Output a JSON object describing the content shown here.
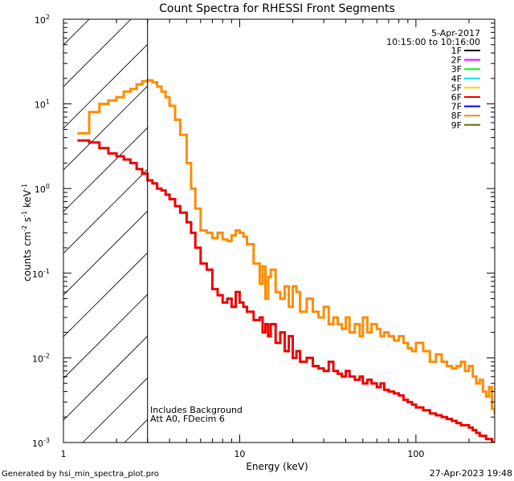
{
  "chart_data": {
    "type": "line",
    "title": "Count Spectra for RHESSI Front Segments",
    "xlabel": "Energy (keV)",
    "ylabel_main": "counts cm",
    "ylabel_exp1": "-2",
    "ylabel_mid1": " s",
    "ylabel_exp2": "-1",
    "ylabel_mid2": " keV",
    "ylabel_exp3": "-1",
    "xscale": "log",
    "yscale": "log",
    "xlim": [
      1,
      280
    ],
    "ylim": [
      0.001,
      100
    ],
    "x_ticks": [
      {
        "value": 1,
        "label": "1"
      },
      {
        "value": 10,
        "label": "10"
      },
      {
        "value": 100,
        "label": "100"
      }
    ],
    "y_ticks": [
      {
        "value": 0.001,
        "base": "10",
        "exp": "-3"
      },
      {
        "value": 0.01,
        "base": "10",
        "exp": "-2"
      },
      {
        "value": 0.1,
        "base": "10",
        "exp": "-1"
      },
      {
        "value": 1,
        "base": "10",
        "exp": "0"
      },
      {
        "value": 10,
        "base": "10",
        "exp": "1"
      },
      {
        "value": 100,
        "base": "10",
        "exp": "2"
      }
    ],
    "threshold_energy": 3,
    "legend_date": "5-Apr-2017",
    "legend_time": "10:15:00 to 10:16:00",
    "legend": [
      {
        "label": "1F",
        "color": "#000000"
      },
      {
        "label": "2F",
        "color": "#ff00ff"
      },
      {
        "label": "3F",
        "color": "#00ff00"
      },
      {
        "label": "4F",
        "color": "#00e5ff"
      },
      {
        "label": "5F",
        "color": "#ffd000"
      },
      {
        "label": "6F",
        "color": "#ee0000"
      },
      {
        "label": "7F",
        "color": "#0000ff"
      },
      {
        "label": "8F",
        "color": "#ff8c00"
      },
      {
        "label": "9F",
        "color": "#6b6b00"
      }
    ],
    "annotations": [
      "Includes Background",
      "Att A0, FDecim 6"
    ],
    "series": [
      {
        "name": "8F",
        "color": "#ff8c00",
        "x": [
          1.2,
          1.4,
          1.6,
          1.8,
          2.0,
          2.2,
          2.4,
          2.6,
          2.8,
          3.0,
          3.2,
          3.4,
          3.6,
          3.8,
          4.0,
          4.3,
          4.6,
          5.0,
          5.3,
          5.6,
          6.0,
          6.5,
          7.0,
          7.5,
          8.0,
          8.5,
          9.0,
          9.5,
          10.0,
          10.5,
          11,
          12,
          13,
          13.5,
          14,
          14.5,
          15,
          16,
          17,
          18,
          19,
          20,
          21,
          22,
          24,
          26,
          28,
          30,
          32,
          34,
          36,
          38,
          40,
          42,
          45,
          48,
          50,
          53,
          56,
          60,
          63,
          66,
          70,
          75,
          80,
          85,
          90,
          95,
          100,
          110,
          120,
          130,
          140,
          150,
          160,
          170,
          180,
          190,
          200,
          210,
          220,
          230,
          240,
          250,
          260,
          270,
          280
        ],
        "y": [
          4.5,
          8,
          10,
          11,
          12,
          14,
          15,
          17,
          18.5,
          19,
          18,
          16,
          14,
          12,
          9.5,
          6.5,
          4.3,
          2.0,
          1.0,
          0.58,
          0.32,
          0.3,
          0.26,
          0.3,
          0.25,
          0.24,
          0.28,
          0.32,
          0.3,
          0.27,
          0.22,
          0.13,
          0.075,
          0.12,
          0.05,
          0.09,
          0.11,
          0.06,
          0.05,
          0.07,
          0.04,
          0.07,
          0.06,
          0.035,
          0.05,
          0.035,
          0.03,
          0.04,
          0.025,
          0.03,
          0.025,
          0.022,
          0.03,
          0.02,
          0.025,
          0.018,
          0.03,
          0.02,
          0.025,
          0.022,
          0.018,
          0.02,
          0.018,
          0.016,
          0.018,
          0.015,
          0.013,
          0.012,
          0.015,
          0.012,
          0.009,
          0.011,
          0.009,
          0.008,
          0.0075,
          0.008,
          0.009,
          0.007,
          0.008,
          0.006,
          0.005,
          0.0055,
          0.004,
          0.0035,
          0.0045,
          0.0025,
          0.0022
        ]
      },
      {
        "name": "6F",
        "color": "#ee0000",
        "x": [
          1.2,
          1.4,
          1.6,
          1.8,
          2.0,
          2.2,
          2.4,
          2.6,
          2.8,
          3.0,
          3.2,
          3.4,
          3.6,
          3.8,
          4.0,
          4.3,
          4.6,
          5.0,
          5.3,
          5.6,
          6.0,
          6.5,
          7.0,
          7.5,
          8.0,
          8.5,
          9.0,
          9.5,
          10.0,
          10.5,
          11,
          12,
          13,
          13.5,
          14,
          14.5,
          15,
          16,
          17,
          18,
          19,
          20,
          21,
          22,
          24,
          26,
          28,
          30,
          32,
          34,
          36,
          38,
          40,
          42,
          45,
          48,
          50,
          53,
          56,
          60,
          63,
          66,
          70,
          75,
          80,
          85,
          90,
          95,
          100,
          110,
          120,
          130,
          140,
          150,
          160,
          170,
          180,
          190,
          200,
          210,
          220,
          230,
          240,
          250,
          260,
          270,
          280
        ],
        "y": [
          3.7,
          3.5,
          3.0,
          2.6,
          2.4,
          2.2,
          2.0,
          1.7,
          1.5,
          1.25,
          1.15,
          1.0,
          0.95,
          0.85,
          0.75,
          0.62,
          0.52,
          0.4,
          0.3,
          0.2,
          0.13,
          0.11,
          0.065,
          0.055,
          0.045,
          0.05,
          0.04,
          0.06,
          0.045,
          0.04,
          0.035,
          0.028,
          0.03,
          0.02,
          0.025,
          0.018,
          0.025,
          0.015,
          0.02,
          0.012,
          0.018,
          0.01,
          0.012,
          0.009,
          0.01,
          0.008,
          0.0075,
          0.007,
          0.009,
          0.007,
          0.0065,
          0.006,
          0.007,
          0.006,
          0.0055,
          0.006,
          0.005,
          0.0055,
          0.005,
          0.0045,
          0.005,
          0.0042,
          0.004,
          0.0038,
          0.0036,
          0.0032,
          0.003,
          0.0028,
          0.0026,
          0.0024,
          0.0022,
          0.0021,
          0.002,
          0.0019,
          0.0018,
          0.0017,
          0.0016,
          0.0016,
          0.0015,
          0.0014,
          0.0013,
          0.0012,
          0.0012,
          0.0011,
          0.0011,
          0.001,
          0.001
        ]
      }
    ]
  },
  "footer": {
    "generated_by": "Generated by hsi_min_spectra_plot.pro",
    "timestamp": "27-Apr-2023 19:48"
  }
}
